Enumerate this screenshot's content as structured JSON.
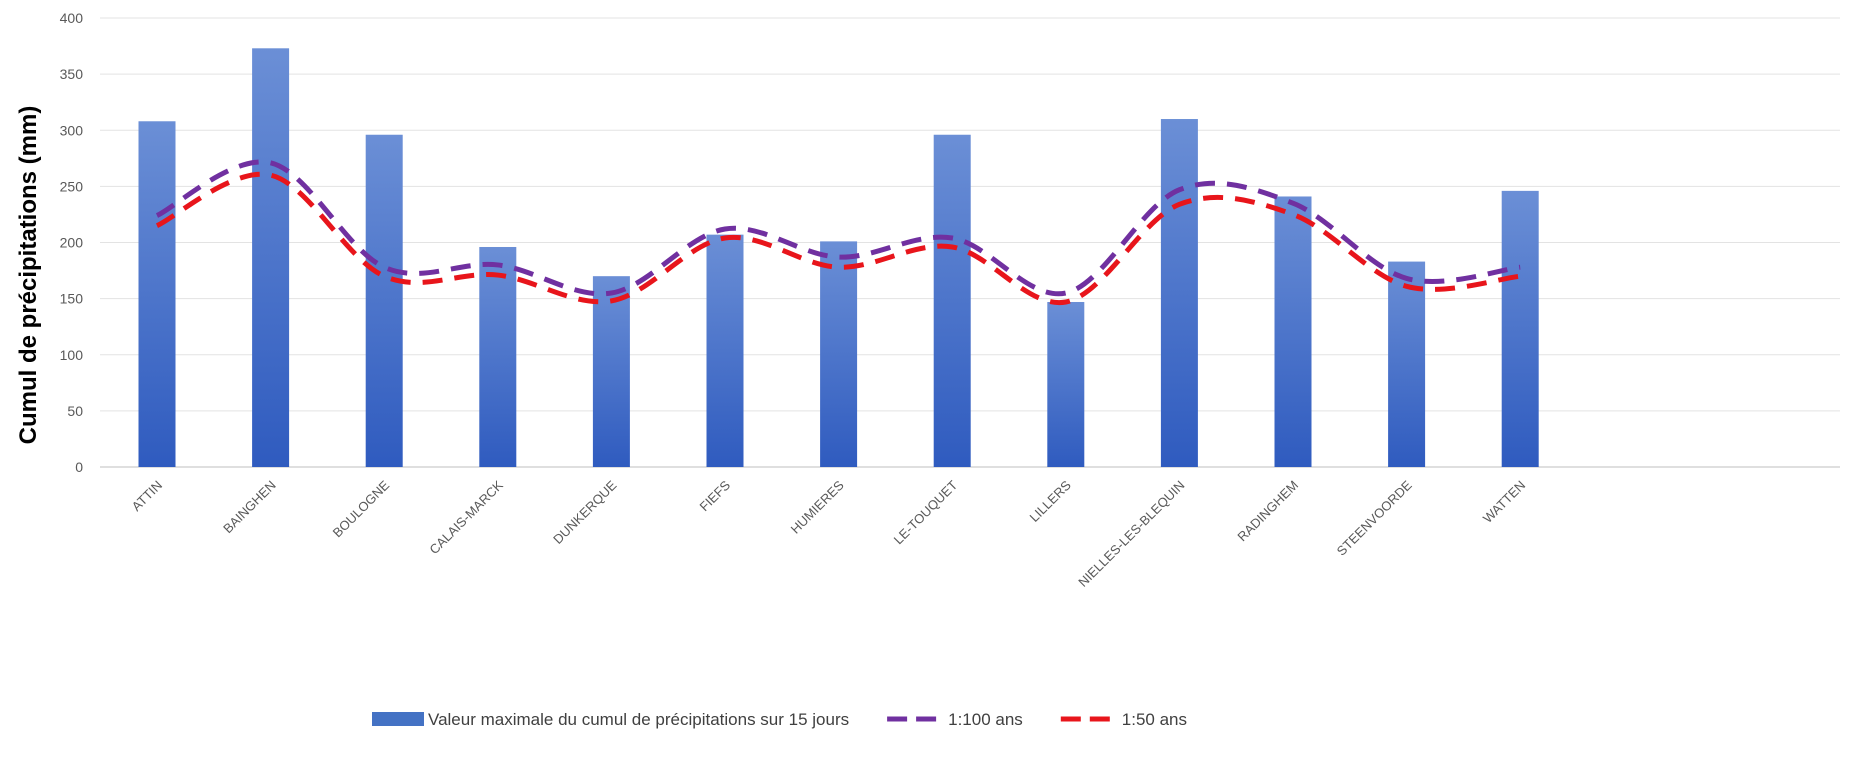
{
  "chart_data": {
    "type": "bar",
    "ylabel": "Cumul de précipitations (mm)",
    "xlabel": "",
    "ylim": [
      0,
      400
    ],
    "yticks": [
      0,
      50,
      100,
      150,
      200,
      250,
      300,
      350,
      400
    ],
    "grid": true,
    "legend_position": "bottom",
    "categories": [
      "ATTIN",
      "BAINGHEN",
      "BOULOGNE",
      "CALAIS-MARCK",
      "DUNKERQUE",
      "FIEFS",
      "HUMIERES",
      "LE-TOUQUET",
      "LILLERS",
      "NIELLES-LES-BLEQUIN",
      "RADINGHEM",
      "STEENVOORDE",
      "WATTEN"
    ],
    "series": [
      {
        "name": "Valeur maximale du cumul de précipitations sur 15 jours",
        "type": "bar",
        "color": "#4472C4",
        "values": [
          308,
          373,
          296,
          196,
          170,
          207,
          201,
          296,
          147,
          310,
          241,
          183,
          246
        ]
      },
      {
        "name": "1:100 ans",
        "type": "line",
        "style": "dashed",
        "color": "#7030A0",
        "values": [
          224,
          271,
          178,
          180,
          155,
          212,
          187,
          204,
          155,
          247,
          235,
          168,
          178
        ]
      },
      {
        "name": "1:50 ans",
        "type": "line",
        "style": "dashed",
        "color": "#E8151B",
        "values": [
          215,
          260,
          170,
          171,
          148,
          204,
          178,
          196,
          147,
          234,
          225,
          161,
          170
        ]
      }
    ]
  }
}
